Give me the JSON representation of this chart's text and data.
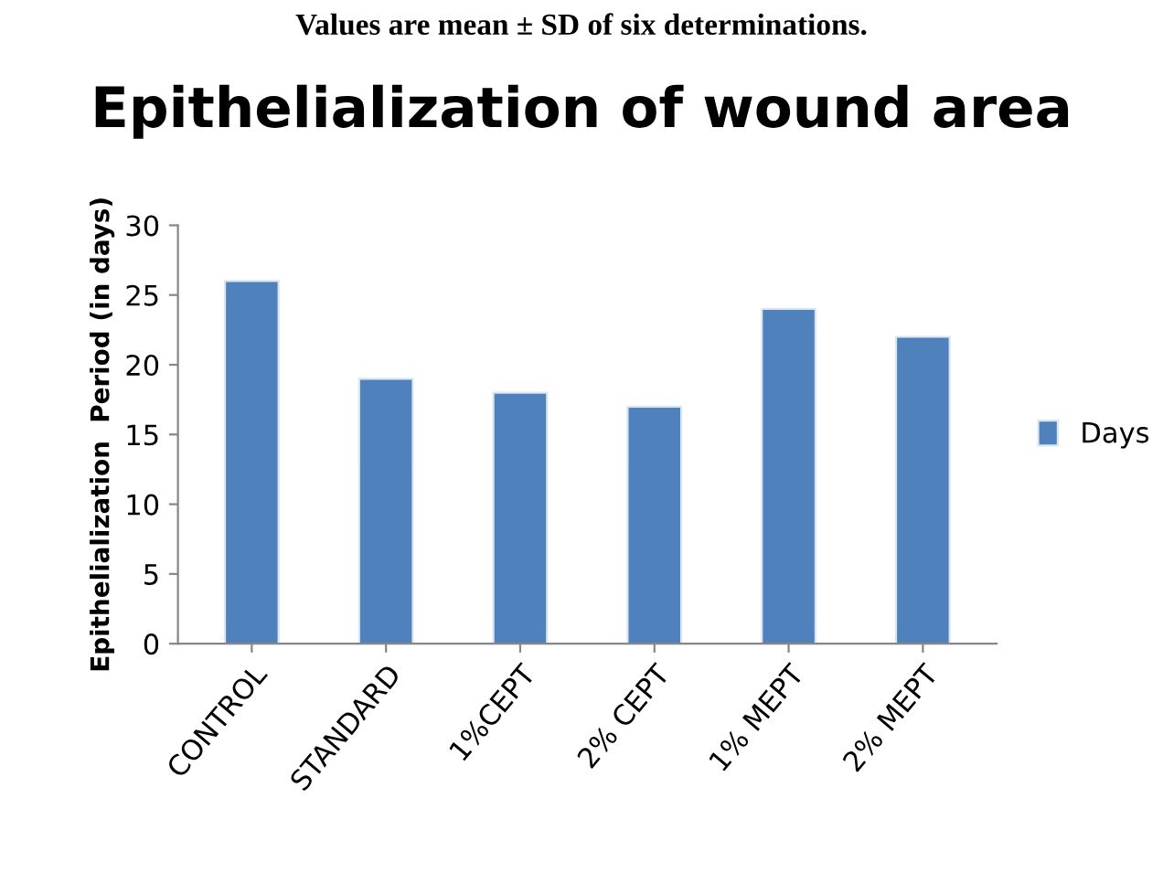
{
  "chart_data": {
    "type": "bar",
    "title": "Epithelialization of wound area",
    "ylabel": "Epithelialization  Period (in days)",
    "annotations": [
      "Values are mean ± SD of six determinations."
    ],
    "categories": [
      "CONTROL",
      "STANDARD",
      "1%CEPT",
      "2% CEPT",
      "1% MEPT",
      "2% MEPT"
    ],
    "series": [
      {
        "name": "Days",
        "color": "#4f81bd",
        "values": [
          26,
          19,
          18,
          17,
          24,
          22
        ]
      }
    ],
    "ylim": [
      0,
      30
    ],
    "yticks": [
      0,
      5,
      10,
      15,
      20,
      25,
      30
    ],
    "legend": "right"
  }
}
